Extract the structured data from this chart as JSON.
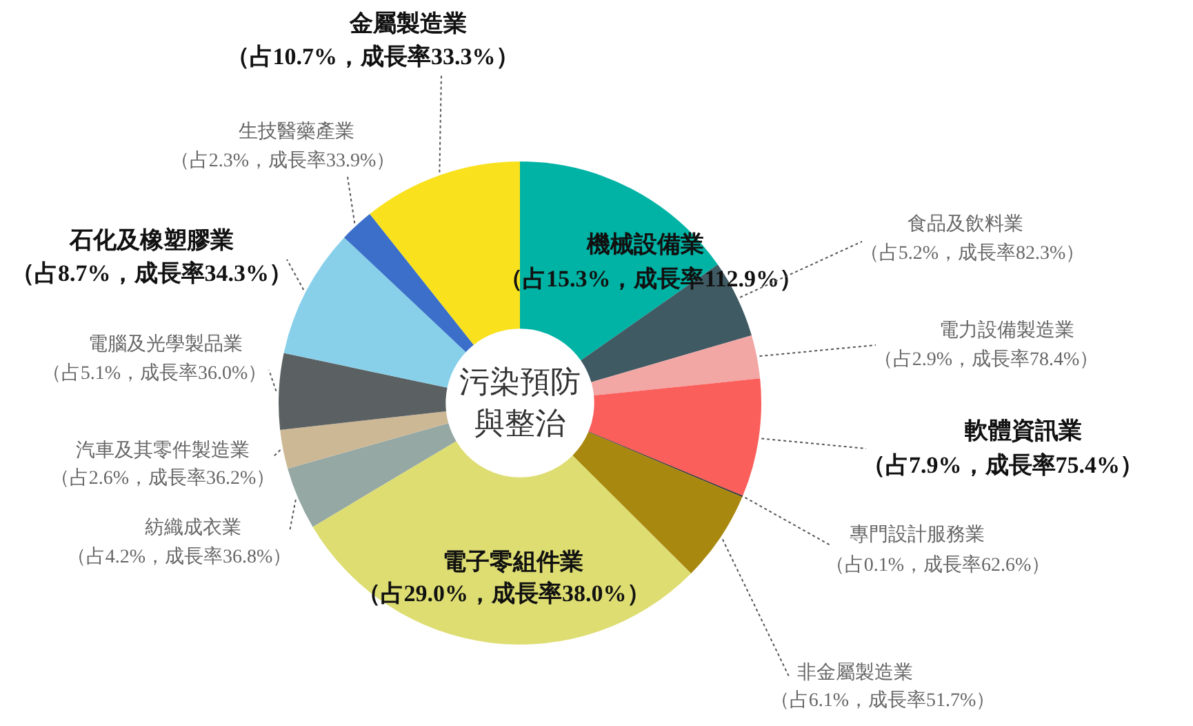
{
  "chart_data": {
    "type": "donut",
    "title": "污染預防與整治",
    "categories": [
      "機械設備業",
      "食品及飲料業",
      "電力設備製造業",
      "軟體資訊業",
      "專門設計服務業",
      "非金屬製造業",
      "電子零組件業",
      "紡織成衣業",
      "汽車及其零件製造業",
      "電腦及光學製品業",
      "石化及橡塑膠業",
      "生技醫藥產業",
      "金屬製造業"
    ],
    "values": [
      15.3,
      5.2,
      2.9,
      7.9,
      0.1,
      6.1,
      29.0,
      4.2,
      2.6,
      5.1,
      8.7,
      2.3,
      10.7
    ],
    "value_labels": [
      "（占15.3%，成長率112.9%）",
      "（占5.2%，成長率82.3%）",
      "（占2.9%，成長率78.4%）",
      "（占7.9%，成長率75.4%）",
      "（占0.1%，成長率62.6%）",
      "（占6.1%，成長率51.7%）",
      "（占29.0%，成長率38.0%）",
      "（占4.2%，成長率36.8%）",
      "（占2.6%，成長率36.2%）",
      "（占5.1%，成長率36.0%）",
      "（占8.7%，成長率34.3%）",
      "（占2.3%，成長率33.9%）",
      "（占10.7%，成長率33.3%）"
    ],
    "colors": [
      "#00b3a4",
      "#3f5a63",
      "#f2a7a5",
      "#fa5f5c",
      "#333333",
      "#a8880e",
      "#dedd72",
      "#95a8a4",
      "#cdb896",
      "#5b6163",
      "#88d0ea",
      "#3b6fc9",
      "#f9e11e"
    ],
    "legend": false
  }
}
